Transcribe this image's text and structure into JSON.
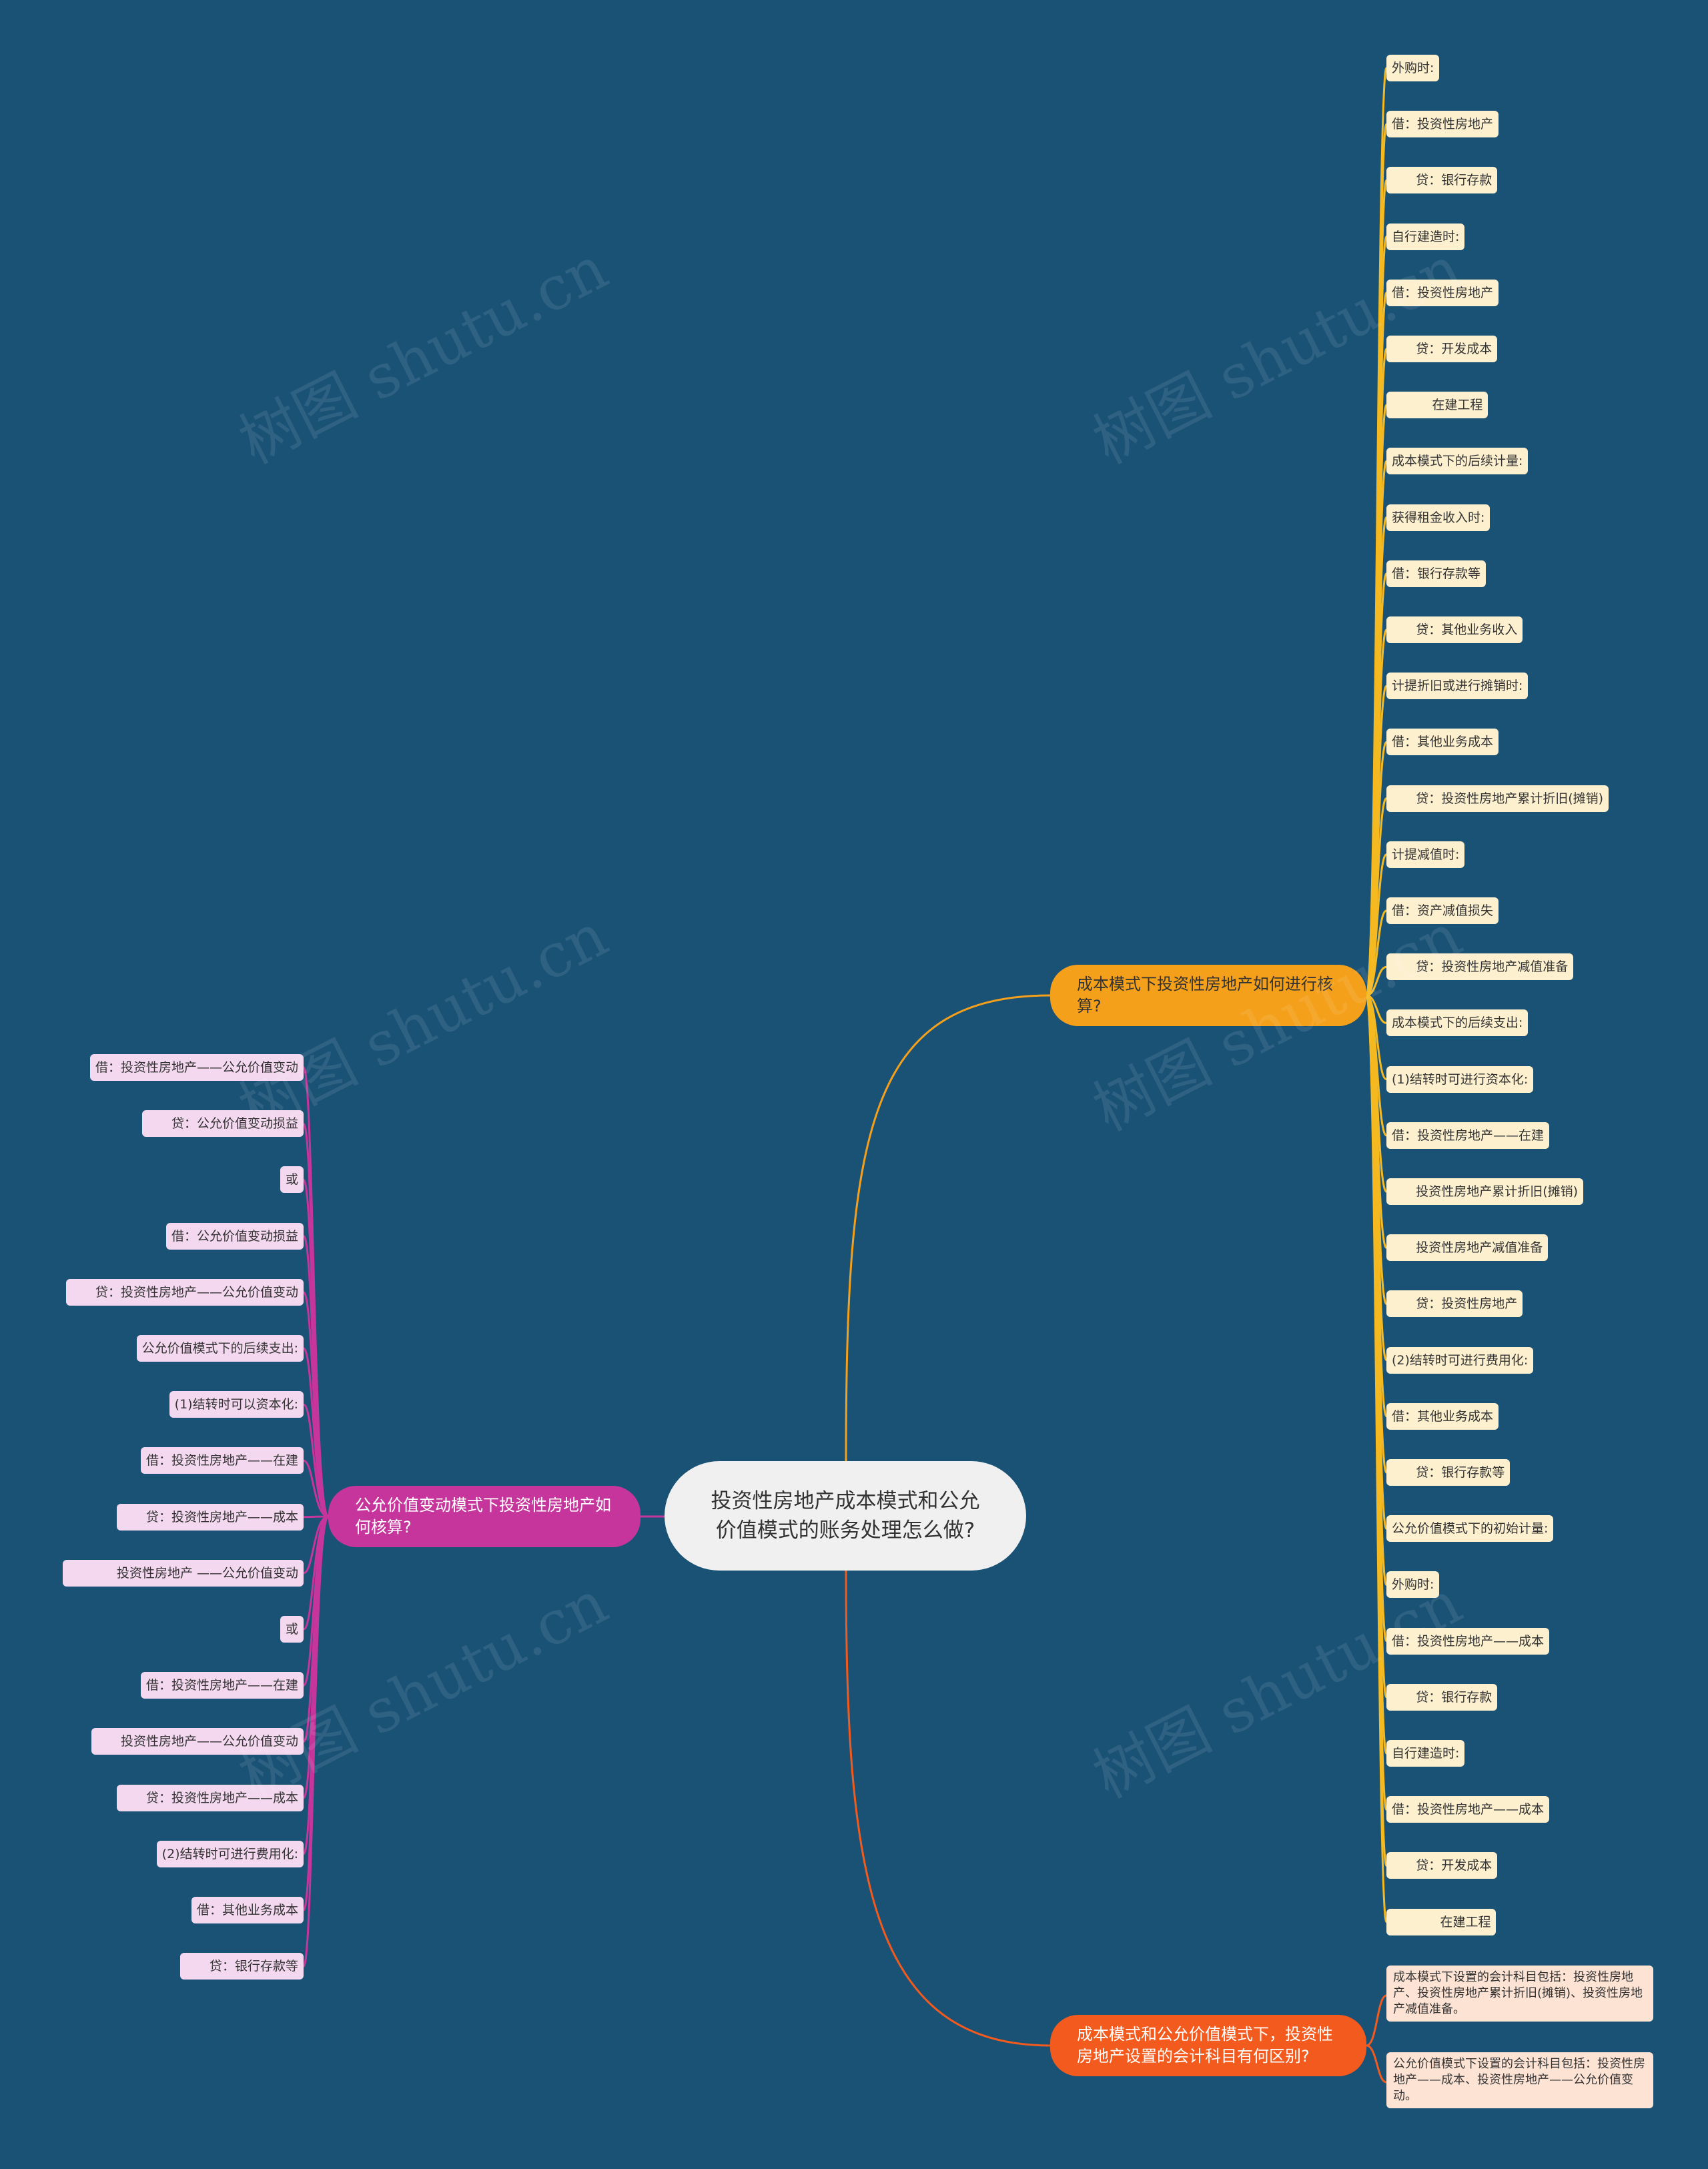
{
  "root": {
    "label": "投资性房地产成本模式和公允价值模式的账务处理怎么做?"
  },
  "branches": {
    "cost_model": {
      "label": "成本模式下投资性房地产如何进行核算?",
      "color": "#f5a01a"
    },
    "difference": {
      "label": "成本模式和公允价值模式下，投资性房地产设置的会计科目有何区别?",
      "color": "#f25a1e"
    },
    "fair_value": {
      "label": "公允价值变动模式下投资性房地产如何核算?",
      "color": "#c6359c"
    }
  },
  "cost_leaves": [
    "外购时:",
    "借：投资性房地产",
    "      贷：银行存款",
    "自行建造时:",
    "借：投资性房地产",
    "      贷：开发成本",
    "          在建工程",
    "成本模式下的后续计量:",
    "获得租金收入时:",
    "借：银行存款等",
    "      贷：其他业务收入",
    "计提折旧或进行摊销时:",
    "借：其他业务成本",
    "      贷：投资性房地产累计折旧(摊销)",
    "计提减值时:",
    "借：资产减值损失",
    "      贷：投资性房地产减值准备",
    "成本模式下的后续支出:",
    "(1)结转时可进行资本化:",
    "借：投资性房地产——在建",
    "      投资性房地产累计折旧(摊销)",
    "      投资性房地产减值准备",
    "      贷：投资性房地产",
    "(2)结转时可进行费用化:",
    "借：其他业务成本",
    "      贷：银行存款等",
    "公允价值模式下的初始计量:",
    "外购时:",
    "借：投资性房地产——成本",
    "      贷：银行存款",
    "自行建造时:",
    "借：投资性房地产——成本",
    "      贷：开发成本",
    "            在建工程"
  ],
  "difference_leaves": [
    "成本模式下设置的会计科目包括：投资性房地产、投资性房地产累计折旧(摊销)、投资性房地产减值准备。",
    "公允价值模式下设置的会计科目包括：投资性房地产——成本、投资性房地产——公允价值变动。"
  ],
  "fair_leaves": [
    "借：投资性房地产——公允价值变动",
    "      贷：公允价值变动损益",
    "或",
    "借：公允价值变动损益",
    "      贷：投资性房地产——公允价值变动",
    "公允价值模式下的后续支出:",
    "(1)结转时可以资本化:",
    "借：投资性房地产——在建",
    "      贷：投资性房地产——成本",
    "            投资性房地产 ——公允价值变动",
    "或",
    "借：投资性房地产——在建",
    "      投资性房地产——公允价值变动",
    "      贷：投资性房地产——成本",
    "(2)结转时可进行费用化:",
    "借：其他业务成本",
    "      贷：银行存款等"
  ],
  "watermark": "树图 shutu.cn",
  "colors": {
    "background": "#1a5276",
    "root": "#f0f0f0",
    "leaf_orange": "#fdf0cf",
    "leaf_pink": "#f3d8ef",
    "leaf_red": "#fde3d3"
  }
}
